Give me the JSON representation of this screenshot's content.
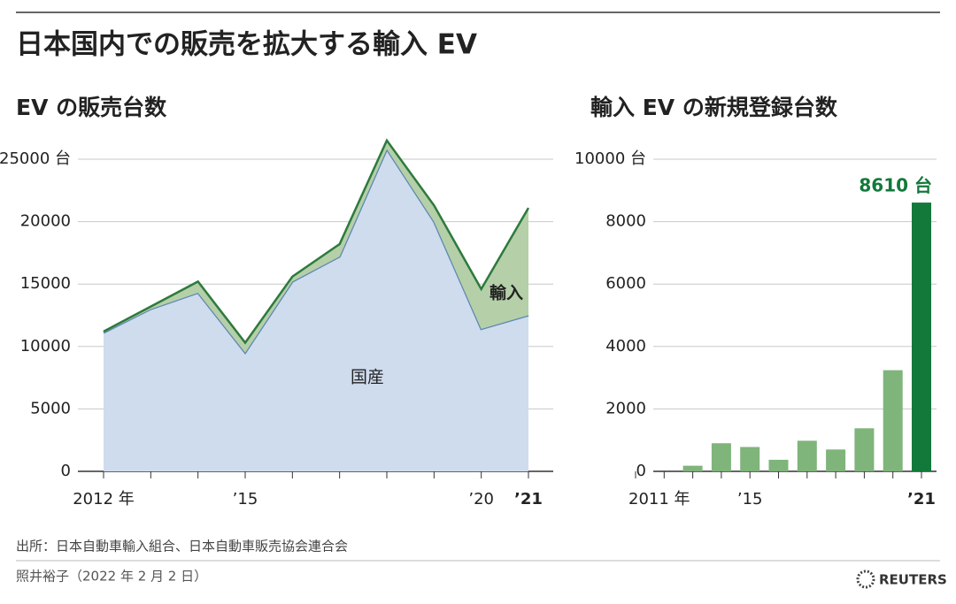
{
  "chart_data": [
    {
      "type": "area",
      "title": "日本国内での販売を拡大する輸入 EV",
      "subtitle": "EV の販売台数",
      "categories": [
        "2012 年",
        null,
        null,
        "’15",
        null,
        null,
        null,
        null,
        "’20",
        "’21"
      ],
      "series": [
        {
          "name": "国産",
          "color": "#cfdcee",
          "line_color": "#5b87b0",
          "values": [
            11100,
            13000,
            14300,
            9500,
            15200,
            17200,
            25800,
            20000,
            11400,
            12500
          ]
        },
        {
          "name": "輸入",
          "color": "#b5cfa8",
          "line_color": "#2d7a3d",
          "values": [
            100,
            200,
            900,
            800,
            400,
            1000,
            700,
            1300,
            3200,
            8600
          ]
        }
      ],
      "ylim": [
        0,
        25000
      ],
      "yticks": [
        0,
        5000,
        10000,
        15000,
        20000,
        {
          "value": 25000,
          "label": "25000 台"
        }
      ],
      "grid": true
    },
    {
      "type": "bar",
      "subtitle": "輸入 EV の新規登録台数",
      "categories": [
        "2011 年",
        null,
        null,
        null,
        "’15",
        null,
        null,
        null,
        null,
        null,
        "’21"
      ],
      "values": [
        0,
        0,
        180,
        900,
        780,
        370,
        980,
        700,
        1380,
        3240,
        8610
      ],
      "value_labels": [
        null,
        null,
        null,
        null,
        null,
        null,
        null,
        null,
        null,
        null,
        "8610 台"
      ],
      "colors": [
        "#7fb47b",
        "#7fb47b",
        "#7fb47b",
        "#7fb47b",
        "#7fb47b",
        "#7fb47b",
        "#7fb47b",
        "#7fb47b",
        "#7fb47b",
        "#7fb47b",
        "#13793b"
      ],
      "ylim": [
        0,
        10000
      ],
      "yticks": [
        0,
        2000,
        4000,
        6000,
        8000,
        {
          "value": 10000,
          "label": "10000 台"
        }
      ],
      "grid": true
    }
  ],
  "source": "出所：日本自動車輸入組合、日本自動車販売協会連合会",
  "byline": "照井裕子（2022 年 2 月 2 日）",
  "logo": "REUTERS"
}
